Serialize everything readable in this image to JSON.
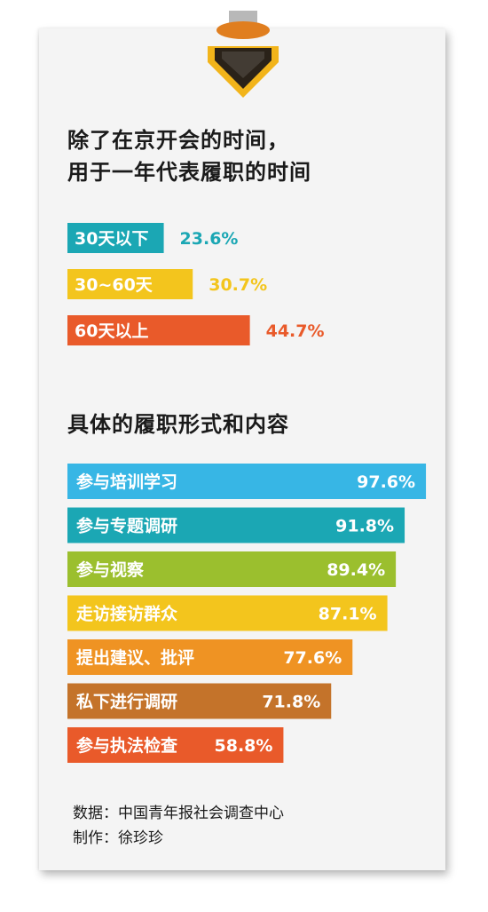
{
  "section1": {
    "title_line1": "除了在京开会的时间，",
    "title_line2": "用于一年代表履职的时间"
  },
  "section2": {
    "title": "具体的履职形式和内容"
  },
  "footer": {
    "source": "数据：中国青年报社会调查中心",
    "maker": "制作：徐珍珍"
  },
  "chart_data": [
    {
      "type": "bar",
      "orientation": "horizontal",
      "categories": [
        "30天以下",
        "30~60天",
        "60天以上"
      ],
      "values": [
        23.6,
        30.7,
        44.7
      ],
      "value_labels": [
        "23.6%",
        "30.7%",
        "44.7%"
      ],
      "colors": [
        "#1ba7b4",
        "#f3c51d",
        "#e95a2a"
      ],
      "value_label_position": "outside"
    },
    {
      "type": "bar",
      "orientation": "horizontal",
      "categories": [
        "参与培训学习",
        "参与专题调研",
        "参与视察",
        "走访接访群众",
        "提出建议、批评",
        "私下进行调研",
        "参与执法检查"
      ],
      "values": [
        97.6,
        91.8,
        89.4,
        87.1,
        77.6,
        71.8,
        58.8
      ],
      "value_labels": [
        "97.6%",
        "91.8%",
        "89.4%",
        "87.1%",
        "77.6%",
        "71.8%",
        "58.8%"
      ],
      "colors": [
        "#37b6e5",
        "#1ba7b4",
        "#9bbf2e",
        "#f3c51d",
        "#ef9323",
        "#c4732a",
        "#e95a2a"
      ],
      "value_label_position": "inside"
    }
  ]
}
